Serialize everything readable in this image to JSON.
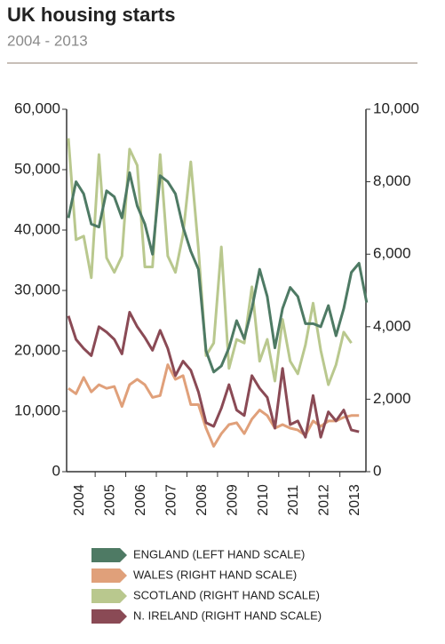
{
  "chart_data": {
    "type": "line",
    "title": "UK housing starts",
    "subtitle": "2004 - 2013",
    "categories": [
      "2004",
      null,
      null,
      null,
      "2005",
      null,
      null,
      null,
      "2006",
      null,
      null,
      null,
      "2007",
      null,
      null,
      null,
      "2008",
      null,
      null,
      null,
      "2009",
      null,
      null,
      null,
      "2010",
      null,
      null,
      null,
      "2011",
      null,
      null,
      null,
      "2012",
      null,
      null,
      null,
      "2013",
      null,
      null,
      null
    ],
    "ylim": [
      0,
      60000
    ],
    "yticks": [
      0,
      {
        "value": 10000,
        "label": "10,000"
      },
      {
        "value": 20000,
        "label": "20,000"
      },
      {
        "value": 30000,
        "label": "30,000"
      },
      {
        "value": 40000,
        "label": "40,000"
      },
      {
        "value": 50000,
        "label": "50,000"
      },
      {
        "value": 60000,
        "label": "60,000"
      }
    ],
    "y2lim": [
      0,
      10000
    ],
    "y2ticks": [
      0,
      {
        "value": 2000,
        "label": "2,000"
      },
      {
        "value": 4000,
        "label": "4,000"
      },
      {
        "value": 6000,
        "label": "6,000"
      },
      {
        "value": 8000,
        "label": "8,000"
      },
      {
        "value": 10000,
        "label": "10,000"
      }
    ],
    "series": [
      {
        "name": "ENGLAND (LEFT HAND SCALE)",
        "color": "#4e7a64",
        "values": [
          42000,
          48000,
          46000,
          41000,
          40500,
          46500,
          45500,
          42000,
          49500,
          44000,
          41000,
          36000,
          49000,
          48000,
          46000,
          40500,
          36500,
          33500,
          20000,
          16500,
          17500,
          20500,
          25000,
          22000,
          27000,
          33500,
          29000,
          20500,
          27000,
          30500,
          29000,
          24500,
          24500,
          24000,
          27500,
          22500,
          27000,
          33000,
          34500,
          28000
        ]
      },
      {
        "name": "WALES (RIGHT HAND SCALE)",
        "color": "#e0a07a",
        "axis": "y2",
        "values": [
          2300,
          2150,
          2600,
          2200,
          2400,
          2300,
          2350,
          1800,
          2400,
          2550,
          2400,
          2050,
          2100,
          2950,
          2550,
          2650,
          1850,
          1850,
          1200,
          700,
          1050,
          1300,
          1350,
          1050,
          1450,
          1700,
          1550,
          1200,
          1300,
          1200,
          1150,
          1000,
          1400,
          1250,
          1400,
          1400,
          1500,
          1550,
          1550,
          null
        ]
      },
      {
        "name": "SCOTLAND (RIGHT HAND SCALE)",
        "color": "#b9c88e",
        "axis": "y2",
        "values": [
          9200,
          6400,
          6500,
          5350,
          8750,
          5900,
          5500,
          5950,
          8900,
          8450,
          5650,
          5650,
          8750,
          5950,
          5500,
          6550,
          8550,
          6150,
          3200,
          3550,
          6200,
          2850,
          3650,
          3550,
          5100,
          3050,
          3650,
          2500,
          4200,
          3050,
          2700,
          3500,
          4650,
          3350,
          2400,
          2950,
          3850,
          3550,
          null,
          null
        ]
      },
      {
        "name": "N. IRELAND (RIGHT HAND SCALE)",
        "color": "#8a4a55",
        "axis": "y2",
        "values": [
          4300,
          3650,
          3400,
          3200,
          4000,
          3850,
          3650,
          3250,
          4400,
          4000,
          3700,
          3350,
          3900,
          3400,
          2650,
          3050,
          2800,
          2200,
          1350,
          1250,
          1750,
          2400,
          1700,
          1550,
          2650,
          2300,
          2050,
          1200,
          2850,
          1300,
          1400,
          950,
          2100,
          950,
          1650,
          1400,
          1700,
          1150,
          1100,
          null
        ]
      }
    ]
  }
}
